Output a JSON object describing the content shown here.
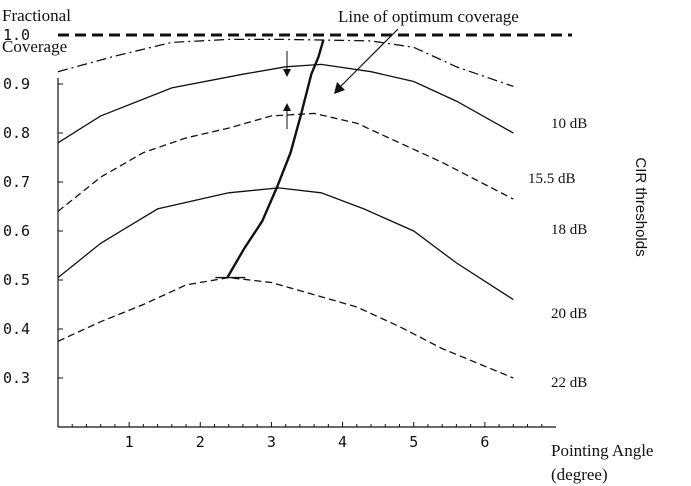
{
  "chart_data": {
    "type": "line",
    "ylabel_lines": [
      "Fractional",
      "Coverage"
    ],
    "xlabel_lines": [
      "Pointing Angle",
      "(degree)"
    ],
    "right_axis_label": "CIR thresholds",
    "annotation": "Line of optimum coverage",
    "xlim": [
      0,
      7.0
    ],
    "ylim": [
      0.2,
      1.0
    ],
    "x_ticks": [
      1,
      2,
      3,
      4,
      5,
      6
    ],
    "y_ticks": [
      {
        "value": 0.3,
        "label": "0.3"
      },
      {
        "value": 0.4,
        "label": "0.4"
      },
      {
        "value": 0.5,
        "label": "0.5"
      },
      {
        "value": 0.6,
        "label": "0.6"
      },
      {
        "value": 0.7,
        "label": "0.7"
      },
      {
        "value": 0.8,
        "label": "0.8"
      },
      {
        "value": 0.9,
        "label": "0.9"
      },
      {
        "value": 1.0,
        "label": "1.0"
      }
    ],
    "grid": false,
    "reference_line": {
      "y": 1.0,
      "style": "dashed-thick"
    },
    "series": [
      {
        "name": "10 dB",
        "style": "dashdot",
        "x": [
          0,
          0.8,
          1.6,
          2.4,
          3.2,
          3.6,
          4.4,
          5.0,
          5.6,
          6.4
        ],
        "y": [
          0.925,
          0.957,
          0.985,
          0.991,
          0.991,
          0.99,
          0.988,
          0.975,
          0.935,
          0.895
        ]
      },
      {
        "name": "15.5 dB",
        "style": "solid",
        "x": [
          0,
          0.6,
          1.6,
          2.6,
          3.2,
          3.7,
          4.4,
          5.0,
          5.6,
          6.4
        ],
        "y": [
          0.78,
          0.835,
          0.892,
          0.92,
          0.935,
          0.94,
          0.925,
          0.905,
          0.865,
          0.8
        ]
      },
      {
        "name": "18 dB",
        "style": "dashed",
        "x": [
          0,
          0.6,
          1.2,
          1.8,
          2.4,
          3.0,
          3.6,
          4.2,
          4.8,
          5.4,
          6.4
        ],
        "y": [
          0.64,
          0.71,
          0.76,
          0.79,
          0.81,
          0.835,
          0.84,
          0.82,
          0.78,
          0.74,
          0.665
        ]
      },
      {
        "name": "20 dB",
        "style": "solid",
        "x": [
          0,
          0.6,
          1.4,
          2.4,
          3.1,
          3.7,
          4.3,
          5.0,
          5.6,
          6.4
        ],
        "y": [
          0.505,
          0.575,
          0.645,
          0.678,
          0.688,
          0.678,
          0.645,
          0.6,
          0.535,
          0.46
        ]
      },
      {
        "name": "22 dB",
        "style": "dashed",
        "x": [
          0,
          0.6,
          1.2,
          1.8,
          2.4,
          3.0,
          3.6,
          4.2,
          4.8,
          5.4,
          6.4
        ],
        "y": [
          0.375,
          0.415,
          0.45,
          0.49,
          0.505,
          0.495,
          0.47,
          0.445,
          0.405,
          0.36,
          0.3
        ]
      }
    ],
    "optimum_line": {
      "x": [
        2.38,
        2.62,
        2.87,
        3.08,
        3.27,
        3.42,
        3.56,
        3.66,
        3.73
      ],
      "y": [
        0.505,
        0.565,
        0.62,
        0.69,
        0.76,
        0.84,
        0.92,
        0.955,
        0.99
      ]
    }
  }
}
